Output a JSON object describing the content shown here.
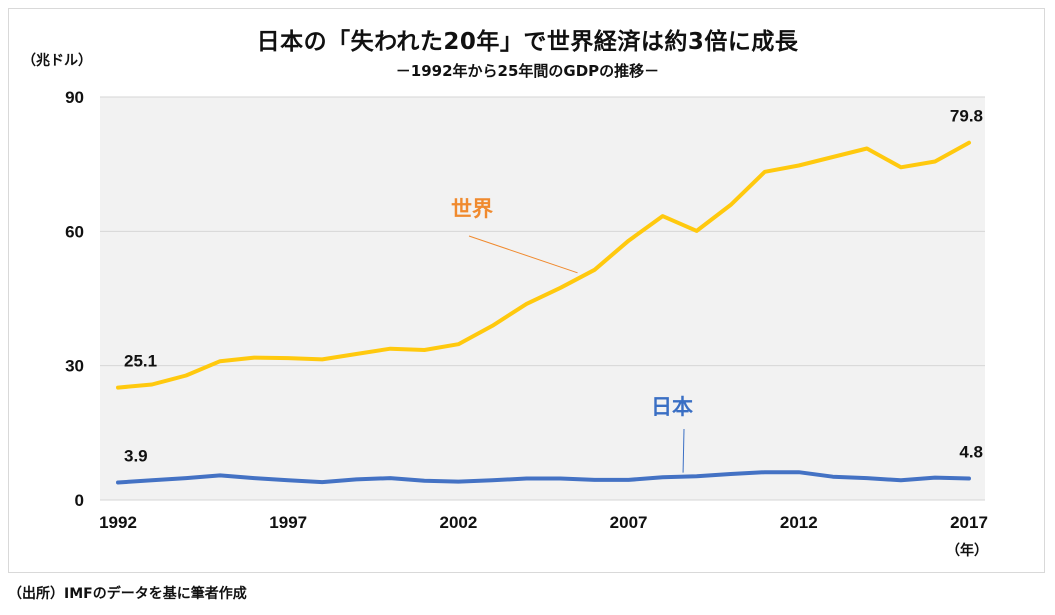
{
  "chart_data": {
    "type": "line",
    "title": "日本の「失われた20年」で世界経済は約3倍に成長",
    "subtitle": "－1992年から25年間のGDPの推移－",
    "ylabel": "（兆ドル）",
    "xlabel": "（年）",
    "source": "（出所）IMFのデータを基に筆者作成",
    "ylim": [
      0,
      90
    ],
    "yticks": [
      "0",
      "30",
      "60",
      "90"
    ],
    "xticks": [
      "1992",
      "1997",
      "2002",
      "2007",
      "2012",
      "2017"
    ],
    "x": [
      1992,
      1993,
      1994,
      1995,
      1996,
      1997,
      1998,
      1999,
      2000,
      2001,
      2002,
      2003,
      2004,
      2005,
      2006,
      2007,
      2008,
      2009,
      2010,
      2011,
      2012,
      2013,
      2014,
      2015,
      2016,
      2017
    ],
    "series": [
      {
        "name": "世界",
        "color": "#FFC90E",
        "label_color": "#F08A2E",
        "values": [
          25.1,
          25.8,
          27.8,
          31.0,
          31.8,
          31.7,
          31.4,
          32.6,
          33.8,
          33.5,
          34.8,
          38.9,
          43.8,
          47.4,
          51.4,
          57.9,
          63.4,
          60.1,
          65.9,
          73.3,
          74.7,
          76.6,
          78.5,
          74.3,
          75.6,
          79.8
        ]
      },
      {
        "name": "日本",
        "color": "#4472C4",
        "label_color": "#3A6FC4",
        "values": [
          3.9,
          4.4,
          4.9,
          5.5,
          4.9,
          4.4,
          4.0,
          4.6,
          4.9,
          4.3,
          4.1,
          4.4,
          4.8,
          4.8,
          4.5,
          4.5,
          5.1,
          5.3,
          5.8,
          6.2,
          6.2,
          5.2,
          4.9,
          4.4,
          5.0,
          4.8
        ]
      }
    ],
    "data_labels": [
      {
        "series": "世界",
        "x": 1992,
        "text": "25.1"
      },
      {
        "series": "世界",
        "x": 2017,
        "text": "79.8"
      },
      {
        "series": "日本",
        "x": 1992,
        "text": "3.9"
      },
      {
        "series": "日本",
        "x": 2017,
        "text": "4.8"
      }
    ],
    "series_labels": [
      {
        "series": "世界",
        "text": "世界",
        "anchor_x": 2005.5
      },
      {
        "series": "日本",
        "text": "日本",
        "anchor_x": 2008.6
      }
    ]
  }
}
